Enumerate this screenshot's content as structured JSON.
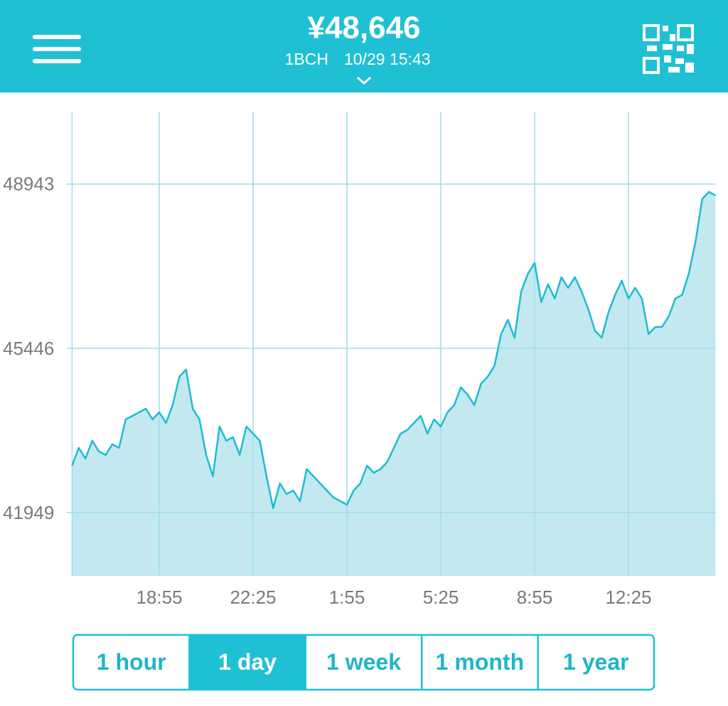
{
  "header": {
    "price": "¥48,646",
    "asset": "1BCH",
    "timestamp": "10/29 15:43"
  },
  "chart_data": {
    "type": "area",
    "categories": [
      null,
      null,
      null,
      null,
      null,
      null,
      null,
      null,
      null,
      null,
      null,
      null,
      null,
      "18:55",
      null,
      null,
      null,
      null,
      null,
      null,
      null,
      null,
      null,
      null,
      null,
      null,
      null,
      "22:25",
      null,
      null,
      null,
      null,
      null,
      null,
      null,
      null,
      null,
      null,
      null,
      null,
      null,
      "1:55",
      null,
      null,
      null,
      null,
      null,
      null,
      null,
      null,
      null,
      null,
      null,
      null,
      null,
      "5:25",
      null,
      null,
      null,
      null,
      null,
      null,
      null,
      null,
      null,
      null,
      null,
      null,
      null,
      "8:55",
      null,
      null,
      null,
      null,
      null,
      null,
      null,
      null,
      null,
      null,
      null,
      null,
      null,
      "12:25",
      null,
      null,
      null,
      null,
      null,
      null,
      null,
      null,
      null,
      null,
      null,
      null,
      null
    ],
    "values": [
      42948,
      43327,
      43100,
      43478,
      43251,
      43175,
      43402,
      43327,
      43932,
      44008,
      44084,
      44159,
      43932,
      44084,
      43857,
      44235,
      44841,
      44992,
      44159,
      43932,
      43175,
      42721,
      43781,
      43478,
      43554,
      43175,
      43781,
      43630,
      43478,
      42721,
      42040,
      42570,
      42343,
      42418,
      42191,
      42873,
      42721,
      42570,
      42418,
      42267,
      42191,
      42116,
      42418,
      42570,
      42948,
      42797,
      42873,
      43024,
      43327,
      43630,
      43705,
      43857,
      44008,
      43630,
      43932,
      43781,
      44084,
      44235,
      44614,
      44462,
      44235,
      44689,
      44841,
      45068,
      45749,
      46052,
      45673,
      46658,
      47036,
      47263,
      46431,
      46809,
      46506,
      46960,
      46733,
      46960,
      46658,
      46279,
      45825,
      45673,
      46203,
      46582,
      46885,
      46506,
      46733,
      46506,
      45749,
      45900,
      45900,
      46127,
      46506,
      46582,
      47036,
      47717,
      48625,
      48776,
      48700
    ],
    "ylim": [
      40600,
      50470
    ],
    "yticks": [
      41949,
      45446,
      48943
    ],
    "color": "#1cbdd1",
    "fill": "#c3e8f0",
    "grid": true
  },
  "range_buttons": {
    "options": [
      "1 hour",
      "1 day",
      "1 week",
      "1 month",
      "1 year"
    ],
    "selected": 1
  }
}
